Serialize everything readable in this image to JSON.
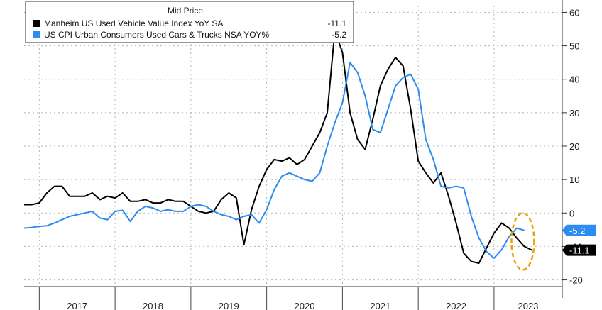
{
  "chart_data": {
    "type": "line",
    "title": "Mid Price",
    "ylim": [
      -22,
      62
    ],
    "y_ticks": [
      60,
      50,
      40,
      30,
      20,
      10,
      0,
      -10,
      -20
    ],
    "y_tick_labels": [
      "60",
      "50",
      "40",
      "30",
      "20",
      "10",
      "0",
      "-10",
      "-20"
    ],
    "x_range": [
      2016.8,
      2023.9
    ],
    "year_labels": [
      "2017",
      "2018",
      "2019",
      "2020",
      "2021",
      "2022",
      "2023"
    ],
    "grid": true,
    "y_axis_position": "right",
    "legend_position": "top-left",
    "series": [
      {
        "name": "Manheim US Used Vehicle Value Index YoY SA",
        "color": "#000000",
        "last_value": "-11.1",
        "x": [
          2016.8,
          2016.9,
          2017.0,
          2017.1,
          2017.2,
          2017.3,
          2017.4,
          2017.5,
          2017.6,
          2017.7,
          2017.8,
          2017.9,
          2018.0,
          2018.1,
          2018.2,
          2018.3,
          2018.4,
          2018.5,
          2018.6,
          2018.7,
          2018.8,
          2018.9,
          2019.0,
          2019.1,
          2019.2,
          2019.3,
          2019.4,
          2019.5,
          2019.6,
          2019.7,
          2019.8,
          2019.9,
          2020.0,
          2020.1,
          2020.2,
          2020.3,
          2020.4,
          2020.5,
          2020.6,
          2020.7,
          2020.8,
          2020.9,
          2021.0,
          2021.1,
          2021.2,
          2021.3,
          2021.4,
          2021.5,
          2021.6,
          2021.7,
          2021.8,
          2021.9,
          2022.0,
          2022.1,
          2022.2,
          2022.3,
          2022.4,
          2022.5,
          2022.6,
          2022.7,
          2022.8,
          2022.9,
          2023.0,
          2023.1,
          2023.2,
          2023.3,
          2023.4,
          2023.5
        ],
        "y": [
          2.5,
          2.5,
          3.0,
          6.0,
          8.0,
          8.0,
          5.0,
          5.0,
          5.0,
          6.0,
          4.0,
          5.0,
          4.5,
          6.0,
          3.5,
          3.5,
          4.0,
          3.0,
          3.0,
          4.0,
          3.5,
          3.5,
          2.0,
          0.5,
          0.0,
          0.5,
          4.0,
          6.0,
          4.5,
          -9.5,
          1.0,
          8.0,
          13.0,
          16.0,
          15.5,
          16.5,
          14.5,
          16.0,
          20.0,
          24.0,
          30.0,
          54.5,
          48.0,
          30.0,
          22.0,
          19.0,
          28.0,
          38.0,
          43.0,
          46.5,
          44.0,
          31.0,
          15.5,
          12.0,
          9.0,
          12.0,
          5.0,
          -3.0,
          -12.0,
          -14.5,
          -15.0,
          -10.5,
          -6.0,
          -3.0,
          -4.5,
          -7.5,
          -10.0,
          -11.1
        ]
      },
      {
        "name": "US CPI Urban Consumers Used Cars & Trucks NSA YOY%",
        "color": "#2d8cf0",
        "last_value": "-5.2",
        "x": [
          2016.8,
          2016.9,
          2017.0,
          2017.1,
          2017.2,
          2017.3,
          2017.4,
          2017.5,
          2017.6,
          2017.7,
          2017.8,
          2017.9,
          2018.0,
          2018.1,
          2018.2,
          2018.3,
          2018.4,
          2018.5,
          2018.6,
          2018.7,
          2018.8,
          2018.9,
          2019.0,
          2019.1,
          2019.2,
          2019.3,
          2019.4,
          2019.5,
          2019.6,
          2019.7,
          2019.8,
          2019.9,
          2020.0,
          2020.1,
          2020.2,
          2020.3,
          2020.4,
          2020.5,
          2020.6,
          2020.7,
          2020.8,
          2020.9,
          2021.0,
          2021.1,
          2021.2,
          2021.3,
          2021.4,
          2021.5,
          2021.6,
          2021.7,
          2021.8,
          2021.9,
          2022.0,
          2022.1,
          2022.2,
          2022.3,
          2022.4,
          2022.5,
          2022.6,
          2022.7,
          2022.8,
          2022.9,
          2023.0,
          2023.1,
          2023.2,
          2023.3,
          2023.4
        ],
        "y": [
          -4.5,
          -4.3,
          -4.0,
          -3.8,
          -3.0,
          -2.0,
          -1.0,
          -0.5,
          0.0,
          0.5,
          -1.5,
          -2.0,
          0.5,
          0.8,
          -2.5,
          0.5,
          2.0,
          1.5,
          0.5,
          1.0,
          0.5,
          0.5,
          2.0,
          2.5,
          2.0,
          0.5,
          -0.5,
          -1.0,
          -2.0,
          -1.0,
          -0.5,
          -3.0,
          1.0,
          7.0,
          11.0,
          12.0,
          11.0,
          10.0,
          9.5,
          12.0,
          20.0,
          27.0,
          33.0,
          45.0,
          42.0,
          35.0,
          25.0,
          24.0,
          31.0,
          38.0,
          40.5,
          41.5,
          37.0,
          22.0,
          16.0,
          8.0,
          7.5,
          8.0,
          7.5,
          -1.0,
          -7.5,
          -11.5,
          -13.5,
          -11.0,
          -7.0,
          -4.5,
          -5.2
        ]
      }
    ]
  },
  "value_tags": [
    {
      "text": "-5.2",
      "color": "#2d8cf0",
      "value": -5.2
    },
    {
      "text": "-11.1",
      "color": "#000000",
      "value": -11.1
    }
  ],
  "highlight": {
    "color": "#e8a200"
  }
}
